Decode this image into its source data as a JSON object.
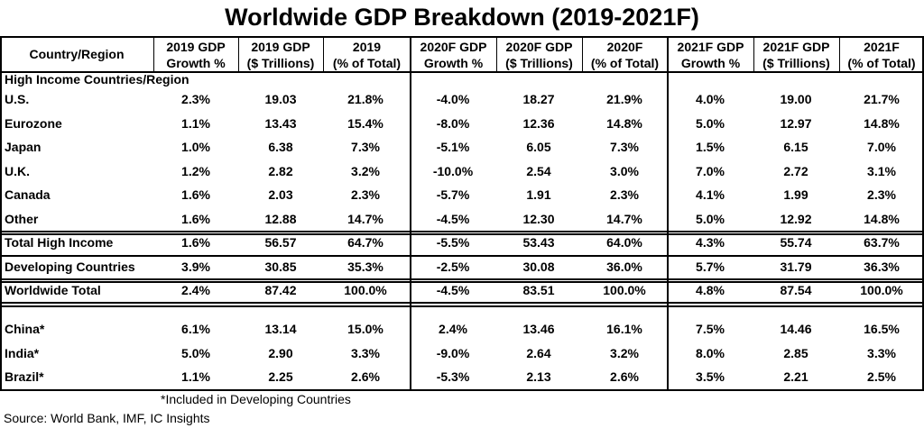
{
  "chart_data": {
    "type": "table",
    "title": "Worldwide GDP Breakdown (2019-2021F)",
    "columns": [
      {
        "line1": "Country/Region",
        "line2": ""
      },
      {
        "line1": "2019 GDP",
        "line2": "Growth %"
      },
      {
        "line1": "2019 GDP",
        "line2": "($ Trillions)"
      },
      {
        "line1": "2019",
        "line2": "(% of Total)"
      },
      {
        "line1": "2020F GDP",
        "line2": "Growth %"
      },
      {
        "line1": "2020F GDP",
        "line2": "($ Trillions)"
      },
      {
        "line1": "2020F",
        "line2": "(% of Total)"
      },
      {
        "line1": "2021F GDP",
        "line2": "Growth %"
      },
      {
        "line1": "2021F GDP",
        "line2": "($ Trillions)"
      },
      {
        "line1": "2021F",
        "line2": "(% of Total)"
      }
    ],
    "section_label": "High Income Countries/Region",
    "rows": [
      {
        "label": "U.S.",
        "values": [
          "2.3%",
          "19.03",
          "21.8%",
          "-4.0%",
          "18.27",
          "21.9%",
          "4.0%",
          "19.00",
          "21.7%"
        ]
      },
      {
        "label": "Eurozone",
        "values": [
          "1.1%",
          "13.43",
          "15.4%",
          "-8.0%",
          "12.36",
          "14.8%",
          "5.0%",
          "12.97",
          "14.8%"
        ]
      },
      {
        "label": "Japan",
        "values": [
          "1.0%",
          "6.38",
          "7.3%",
          "-5.1%",
          "6.05",
          "7.3%",
          "1.5%",
          "6.15",
          "7.0%"
        ]
      },
      {
        "label": "U.K.",
        "values": [
          "1.2%",
          "2.82",
          "3.2%",
          "-10.0%",
          "2.54",
          "3.0%",
          "7.0%",
          "2.72",
          "3.1%"
        ]
      },
      {
        "label": "Canada",
        "values": [
          "1.6%",
          "2.03",
          "2.3%",
          "-5.7%",
          "1.91",
          "2.3%",
          "4.1%",
          "1.99",
          "2.3%"
        ]
      },
      {
        "label": "Other",
        "values": [
          "1.6%",
          "12.88",
          "14.7%",
          "-4.5%",
          "12.30",
          "14.7%",
          "5.0%",
          "12.92",
          "14.8%"
        ]
      },
      {
        "label": "Total High Income",
        "values": [
          "1.6%",
          "56.57",
          "64.7%",
          "-5.5%",
          "53.43",
          "64.0%",
          "4.3%",
          "55.74",
          "63.7%"
        ]
      },
      {
        "label": "Developing Countries",
        "values": [
          "3.9%",
          "30.85",
          "35.3%",
          "-2.5%",
          "30.08",
          "36.0%",
          "5.7%",
          "31.79",
          "36.3%"
        ]
      },
      {
        "label": "Worldwide Total",
        "values": [
          "2.4%",
          "87.42",
          "100.0%",
          "-4.5%",
          "83.51",
          "100.0%",
          "4.8%",
          "87.54",
          "100.0%"
        ]
      },
      {
        "label": "China*",
        "values": [
          "6.1%",
          "13.14",
          "15.0%",
          "2.4%",
          "13.46",
          "16.1%",
          "7.5%",
          "14.46",
          "16.5%"
        ]
      },
      {
        "label": "India*",
        "values": [
          "5.0%",
          "2.90",
          "3.3%",
          "-9.0%",
          "2.64",
          "3.2%",
          "8.0%",
          "2.85",
          "3.3%"
        ]
      },
      {
        "label": "Brazil*",
        "values": [
          "1.1%",
          "2.25",
          "2.6%",
          "-5.3%",
          "2.13",
          "2.6%",
          "3.5%",
          "2.21",
          "2.5%"
        ]
      }
    ],
    "footnote": "*Included in Developing Countries",
    "source": "Source: World Bank, IMF, IC Insights"
  }
}
